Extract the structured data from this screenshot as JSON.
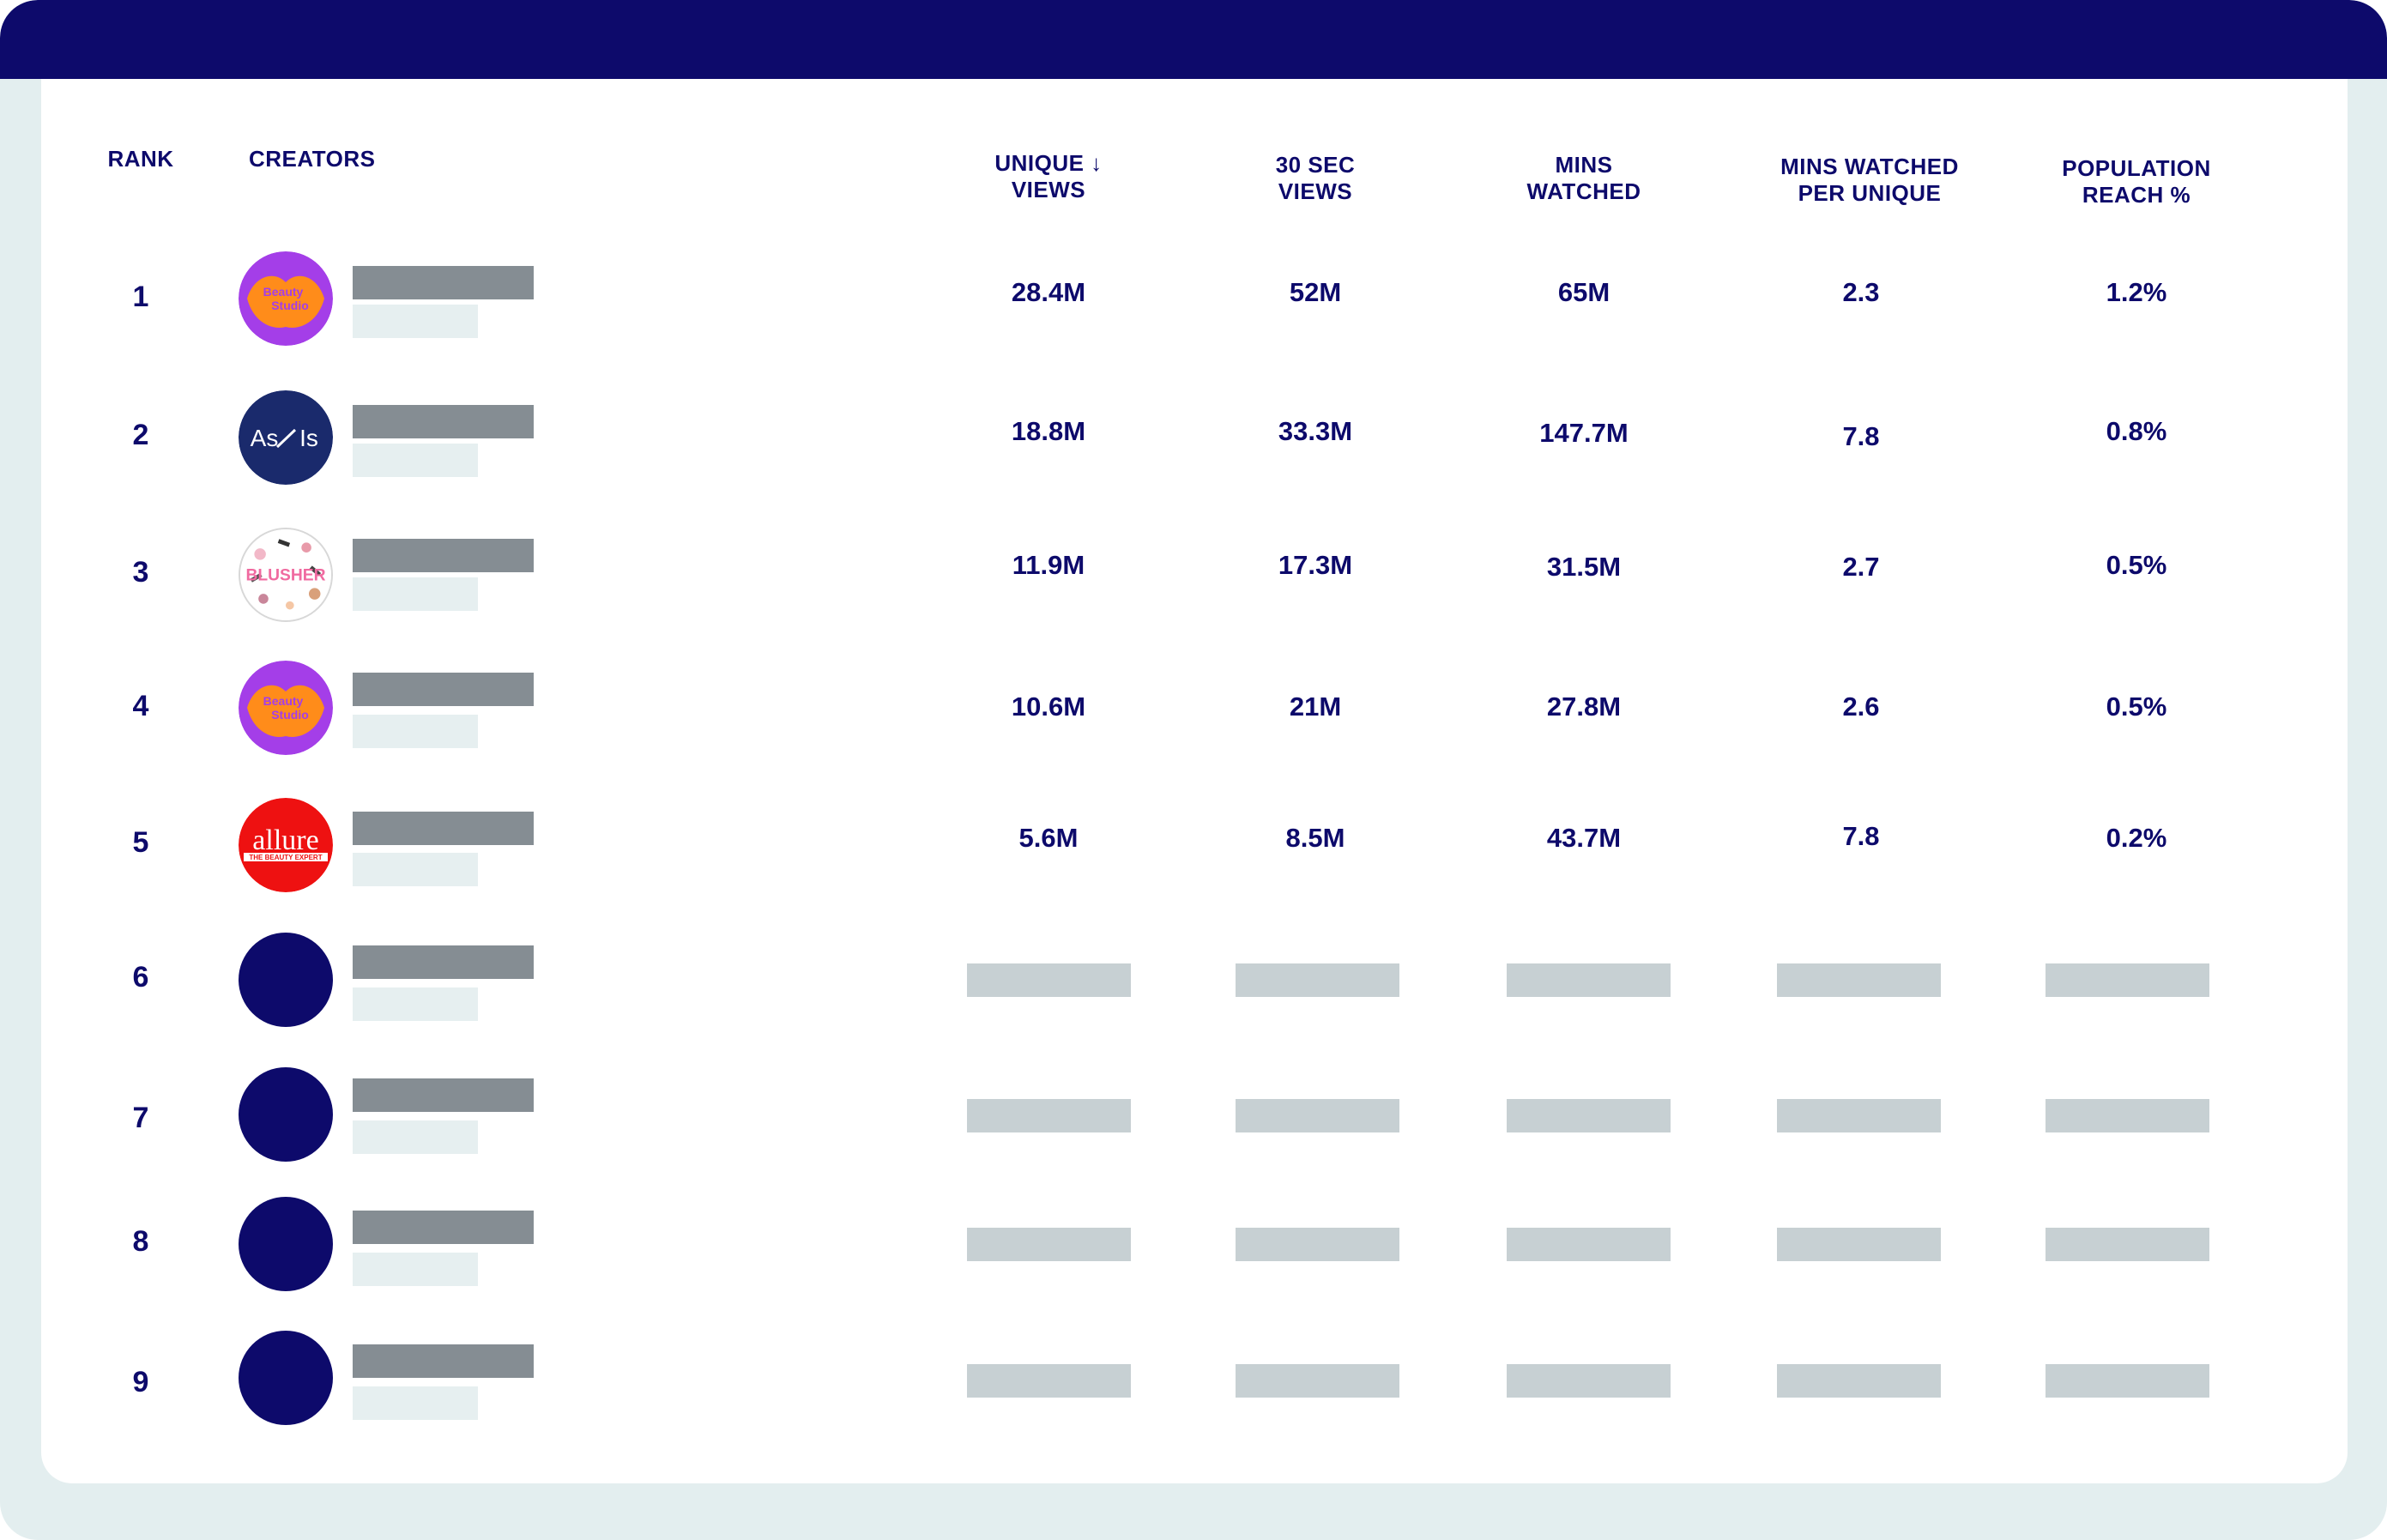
{
  "colors": {
    "navy": "#0d0a6b",
    "frame": "#e3eeef",
    "name_placeholder": "#858d93",
    "sub_placeholder": "#e6eff0",
    "cell_placeholder": "#c7d0d3"
  },
  "headers": {
    "rank": "RANK",
    "creators": "CREATORS",
    "unique_views": [
      "UNIQUE ↓",
      "VIEWS"
    ],
    "sec30_views": [
      "30 SEC",
      "VIEWS"
    ],
    "mins_watched": [
      "MINS",
      "WATCHED"
    ],
    "mins_per_unique": [
      "MINS WATCHED",
      "PER UNIQUE"
    ],
    "population_reach": [
      "POPULATION",
      "REACH %"
    ]
  },
  "rows": [
    {
      "rank": "1",
      "avatar": "beauty-studio-logo",
      "unique_views": "28.4M",
      "sec30_views": "52M",
      "mins_watched": "65M",
      "mins_per_unique": "2.3",
      "population_reach": "1.2%"
    },
    {
      "rank": "2",
      "avatar": "as-is-logo",
      "unique_views": "18.8M",
      "sec30_views": "33.3M",
      "mins_watched": "147.7M",
      "mins_per_unique": "7.8",
      "population_reach": "0.8%"
    },
    {
      "rank": "3",
      "avatar": "blusher-logo",
      "unique_views": "11.9M",
      "sec30_views": "17.3M",
      "mins_watched": "31.5M",
      "mins_per_unique": "2.7",
      "population_reach": "0.5%"
    },
    {
      "rank": "4",
      "avatar": "beauty-studio-logo",
      "unique_views": "10.6M",
      "sec30_views": "21M",
      "mins_watched": "27.8M",
      "mins_per_unique": "2.6",
      "population_reach": "0.5%"
    },
    {
      "rank": "5",
      "avatar": "allure-logo",
      "unique_views": "5.6M",
      "sec30_views": "8.5M",
      "mins_watched": "43.7M",
      "mins_per_unique": "7.8",
      "population_reach": "0.2%"
    },
    {
      "rank": "6",
      "avatar": "placeholder-avatar"
    },
    {
      "rank": "7",
      "avatar": "placeholder-avatar"
    },
    {
      "rank": "8",
      "avatar": "placeholder-avatar"
    },
    {
      "rank": "9",
      "avatar": "placeholder-avatar"
    }
  ],
  "logos": {
    "beauty_studio": [
      "Beauty",
      "Studio"
    ],
    "as_is": [
      "As",
      "Is"
    ],
    "blusher": "BLUSHER",
    "allure": [
      "allure",
      "THE BEAUTY EXPERT"
    ]
  }
}
